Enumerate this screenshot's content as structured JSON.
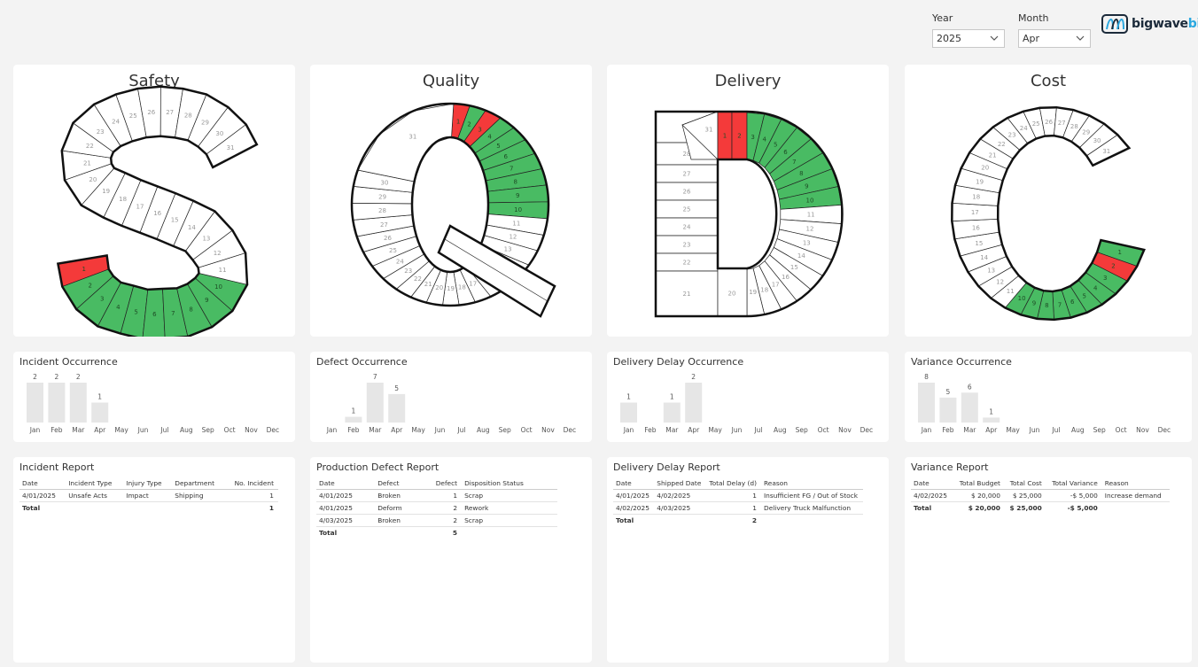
{
  "filters": {
    "year": {
      "label": "Year",
      "value": "2025"
    },
    "month": {
      "label": "Month",
      "value": "Apr"
    }
  },
  "logo": {
    "main": "bigwave",
    "suffix": "bi"
  },
  "colors": {
    "good": "#49bb63",
    "bad": "#f43a3a",
    "neutral": "#ffffff",
    "bar": "#e6e6e6"
  },
  "letters": [
    {
      "key": "safety",
      "title": "Safety",
      "letter": "S",
      "status": {
        "1": "bad",
        "2": "good",
        "3": "good",
        "4": "good",
        "5": "good",
        "6": "good",
        "7": "good",
        "8": "good",
        "9": "good",
        "10": "good"
      }
    },
    {
      "key": "quality",
      "title": "Quality",
      "letter": "Q",
      "status": {
        "1": "bad",
        "2": "good",
        "3": "bad",
        "4": "good",
        "5": "good",
        "6": "good",
        "7": "good",
        "8": "good",
        "9": "good",
        "10": "good"
      }
    },
    {
      "key": "delivery",
      "title": "Delivery",
      "letter": "D",
      "status": {
        "1": "bad",
        "2": "bad",
        "3": "good",
        "4": "good",
        "5": "good",
        "6": "good",
        "7": "good",
        "8": "good",
        "9": "good",
        "10": "good"
      }
    },
    {
      "key": "cost",
      "title": "Cost",
      "letter": "C",
      "status": {
        "1": "good",
        "2": "bad",
        "3": "good",
        "4": "good",
        "5": "good",
        "6": "good",
        "7": "good",
        "8": "good",
        "9": "good",
        "10": "good"
      }
    }
  ],
  "chart_data": [
    {
      "type": "bar",
      "title": "Incident Occurrence",
      "categories": [
        "Jan",
        "Feb",
        "Mar",
        "Apr",
        "May",
        "Jun",
        "Jul",
        "Aug",
        "Sep",
        "Oct",
        "Nov",
        "Dec"
      ],
      "values": [
        2,
        2,
        2,
        1,
        null,
        null,
        null,
        null,
        null,
        null,
        null,
        null
      ],
      "xlabel": "",
      "ylabel": "",
      "ylim": [
        0,
        2
      ]
    },
    {
      "type": "bar",
      "title": "Defect Occurrence",
      "categories": [
        "Jan",
        "Feb",
        "Mar",
        "Apr",
        "May",
        "Jun",
        "Jul",
        "Aug",
        "Sep",
        "Oct",
        "Nov",
        "Dec"
      ],
      "values": [
        null,
        1,
        7,
        5,
        null,
        null,
        null,
        null,
        null,
        null,
        null,
        null
      ],
      "xlabel": "",
      "ylabel": "",
      "ylim": [
        0,
        7
      ]
    },
    {
      "type": "bar",
      "title": "Delivery Delay Occurrence",
      "categories": [
        "Jan",
        "Feb",
        "Mar",
        "Apr",
        "May",
        "Jun",
        "Jul",
        "Aug",
        "Sep",
        "Oct",
        "Nov",
        "Dec"
      ],
      "values": [
        1,
        null,
        1,
        2,
        null,
        null,
        null,
        null,
        null,
        null,
        null,
        null
      ],
      "xlabel": "",
      "ylabel": "",
      "ylim": [
        0,
        2
      ]
    },
    {
      "type": "bar",
      "title": "Variance Occurrence",
      "categories": [
        "Jan",
        "Feb",
        "Mar",
        "Apr",
        "May",
        "Jun",
        "Jul",
        "Aug",
        "Sep",
        "Oct",
        "Nov",
        "Dec"
      ],
      "values": [
        8,
        5,
        6,
        1,
        null,
        null,
        null,
        null,
        null,
        null,
        null,
        null
      ],
      "xlabel": "",
      "ylabel": "",
      "ylim": [
        0,
        8
      ]
    }
  ],
  "reports": [
    {
      "title": "Incident Report",
      "columns": [
        "Date",
        "Incident Type",
        "Injury Type",
        "Department",
        "No. Incident"
      ],
      "numeric": [
        false,
        false,
        false,
        false,
        true
      ],
      "rows": [
        [
          "4/01/2025",
          "Unsafe Acts",
          "Impact",
          "Shipping",
          "1"
        ]
      ],
      "total": [
        "Total",
        "",
        "",
        "",
        "1"
      ]
    },
    {
      "title": "Production Defect Report",
      "columns": [
        "Date",
        "Defect",
        "Defect",
        "Disposition Status"
      ],
      "numeric": [
        false,
        false,
        true,
        false
      ],
      "rows": [
        [
          "4/01/2025",
          "Broken",
          "1",
          "Scrap"
        ],
        [
          "4/01/2025",
          "Deform",
          "2",
          "Rework"
        ],
        [
          "4/03/2025",
          "Broken",
          "2",
          "Scrap"
        ]
      ],
      "total": [
        "Total",
        "",
        "5",
        ""
      ]
    },
    {
      "title": "Delivery Delay Report",
      "columns": [
        "Date",
        "Shipped Date",
        "Total Delay (d)",
        "Reason"
      ],
      "numeric": [
        false,
        false,
        true,
        false
      ],
      "rows": [
        [
          "4/01/2025",
          "4/02/2025",
          "1",
          "Insufficient FG / Out of Stock"
        ],
        [
          "4/02/2025",
          "4/03/2025",
          "1",
          "Delivery Truck Malfunction"
        ]
      ],
      "total": [
        "Total",
        "",
        "2",
        ""
      ]
    },
    {
      "title": "Variance Report",
      "columns": [
        "Date",
        "Total Budget",
        "Total Cost",
        "Total Variance",
        "Reason"
      ],
      "numeric": [
        false,
        true,
        true,
        true,
        false
      ],
      "rows": [
        [
          "4/02/2025",
          "$ 20,000",
          "$ 25,000",
          "-$ 5,000",
          "Increase demand"
        ]
      ],
      "total": [
        "Total",
        "$ 20,000",
        "$ 25,000",
        "-$ 5,000",
        ""
      ]
    }
  ]
}
